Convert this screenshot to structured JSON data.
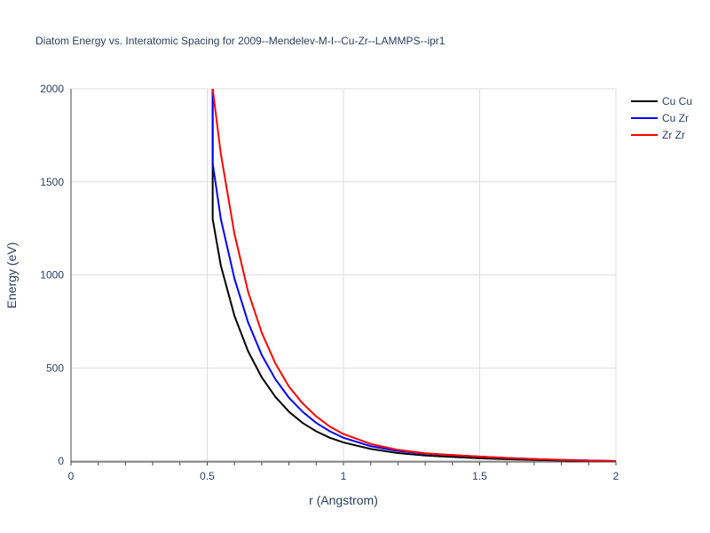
{
  "chart_data": {
    "type": "line",
    "title": "Diatom Energy vs. Interatomic Spacing for 2009--Mendelev-M-I--Cu-Zr--LAMMPS--ipr1",
    "xlabel": "r (Angstrom)",
    "ylabel": "Energy (eV)",
    "xlim": [
      0,
      2
    ],
    "ylim": [
      0,
      2000
    ],
    "xticks": [
      0,
      0.5,
      1,
      1.5,
      2
    ],
    "xtick_labels": [
      "0",
      "0.5",
      "1",
      "1.5",
      "2"
    ],
    "yticks": [
      0,
      500,
      1000,
      1500,
      2000
    ],
    "ytick_labels": [
      "0",
      "500",
      "1000",
      "1500",
      "2000"
    ],
    "grid": true,
    "legend_position": "top-right",
    "series": [
      {
        "name": "Cu Cu",
        "color": "#000000",
        "points": [
          [
            0.52,
            2000
          ],
          [
            0.52,
            1300
          ],
          [
            0.55,
            1050
          ],
          [
            0.6,
            780
          ],
          [
            0.65,
            590
          ],
          [
            0.7,
            450
          ],
          [
            0.75,
            345
          ],
          [
            0.8,
            265
          ],
          [
            0.85,
            205
          ],
          [
            0.9,
            160
          ],
          [
            0.95,
            125
          ],
          [
            1.0,
            100
          ],
          [
            1.1,
            65
          ],
          [
            1.2,
            43
          ],
          [
            1.3,
            30
          ],
          [
            1.4,
            22
          ],
          [
            1.5,
            15
          ],
          [
            1.6,
            10
          ],
          [
            1.7,
            6
          ],
          [
            1.8,
            3
          ],
          [
            1.9,
            1.5
          ],
          [
            2.0,
            0
          ]
        ]
      },
      {
        "name": "Cu Zr",
        "color": "#0000ff",
        "points": [
          [
            0.52,
            2000
          ],
          [
            0.52,
            1600
          ],
          [
            0.55,
            1300
          ],
          [
            0.6,
            980
          ],
          [
            0.65,
            745
          ],
          [
            0.7,
            570
          ],
          [
            0.75,
            440
          ],
          [
            0.8,
            340
          ],
          [
            0.85,
            265
          ],
          [
            0.9,
            205
          ],
          [
            0.95,
            160
          ],
          [
            1.0,
            125
          ],
          [
            1.1,
            80
          ],
          [
            1.2,
            54
          ],
          [
            1.3,
            40
          ],
          [
            1.4,
            32
          ],
          [
            1.5,
            24
          ],
          [
            1.6,
            17
          ],
          [
            1.7,
            11
          ],
          [
            1.8,
            6
          ],
          [
            1.9,
            3
          ],
          [
            2.0,
            0
          ]
        ]
      },
      {
        "name": "Zr Zr",
        "color": "#ff0000",
        "points": [
          [
            0.52,
            2000
          ],
          [
            0.55,
            1650
          ],
          [
            0.6,
            1220
          ],
          [
            0.65,
            910
          ],
          [
            0.7,
            690
          ],
          [
            0.75,
            525
          ],
          [
            0.8,
            400
          ],
          [
            0.85,
            310
          ],
          [
            0.9,
            240
          ],
          [
            0.95,
            185
          ],
          [
            1.0,
            145
          ],
          [
            1.1,
            92
          ],
          [
            1.2,
            60
          ],
          [
            1.3,
            42
          ],
          [
            1.4,
            32
          ],
          [
            1.5,
            24
          ],
          [
            1.6,
            17
          ],
          [
            1.7,
            11
          ],
          [
            1.8,
            6
          ],
          [
            1.9,
            2.5
          ],
          [
            2.0,
            0
          ]
        ]
      }
    ]
  }
}
